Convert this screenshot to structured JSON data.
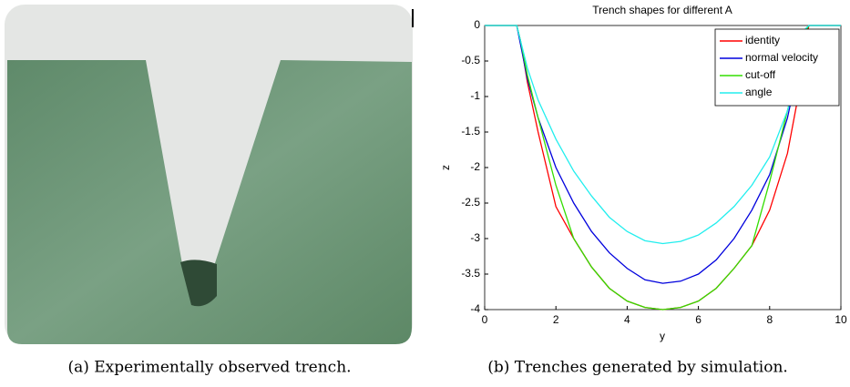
{
  "chart_data": {
    "type": "line",
    "title": "Trench shapes for different A",
    "x_label": "y",
    "y_label": "z",
    "x": [
      0,
      0.5,
      0.9,
      1.0,
      1.2,
      1.5,
      2,
      2.5,
      3,
      3.5,
      4,
      4.5,
      5,
      5.5,
      6,
      6.5,
      7,
      7.5,
      8,
      8.5,
      8.8,
      9,
      9.1,
      9.5,
      10
    ],
    "series": [
      {
        "name": "identity",
        "color": "#ff0000",
        "values": [
          0,
          0,
          0,
          -0.2,
          -0.8,
          -1.5,
          -2.55,
          -3.0,
          -3.4,
          -3.7,
          -3.88,
          -3.97,
          -4.0,
          -3.97,
          -3.88,
          -3.7,
          -3.42,
          -3.1,
          -2.6,
          -1.8,
          -1.0,
          -0.3,
          0,
          0,
          0
        ]
      },
      {
        "name": "normal velocity",
        "color": "#0000dd",
        "values": [
          0,
          0,
          0,
          -0.25,
          -0.75,
          -1.3,
          -2.0,
          -2.5,
          -2.9,
          -3.2,
          -3.42,
          -3.58,
          -3.63,
          -3.6,
          -3.5,
          -3.3,
          -3.0,
          -2.6,
          -2.1,
          -1.3,
          -0.6,
          -0.1,
          0,
          0,
          0
        ]
      },
      {
        "name": "cut-off",
        "color": "#33dd00",
        "values": [
          0,
          0,
          0,
          -0.2,
          -0.7,
          -1.3,
          -2.25,
          -3.0,
          -3.4,
          -3.7,
          -3.88,
          -3.97,
          -4.0,
          -3.97,
          -3.88,
          -3.7,
          -3.42,
          -3.1,
          -2.2,
          -1.2,
          -0.6,
          -0.1,
          0,
          0,
          0
        ]
      },
      {
        "name": "angle",
        "color": "#22eeee",
        "values": [
          0,
          0,
          0,
          -0.2,
          -0.6,
          -1.05,
          -1.6,
          -2.05,
          -2.4,
          -2.7,
          -2.9,
          -3.03,
          -3.07,
          -3.04,
          -2.95,
          -2.78,
          -2.55,
          -2.25,
          -1.85,
          -1.2,
          -0.6,
          -0.05,
          0,
          0,
          0
        ]
      }
    ],
    "xlim": [
      0,
      10
    ],
    "ylim": [
      -4,
      0
    ],
    "xticks": [
      0,
      2,
      4,
      6,
      8,
      10
    ],
    "yticks": [
      0,
      -0.5,
      -1,
      -1.5,
      -2,
      -2.5,
      -3,
      -3.5,
      -4
    ],
    "legend": "upper right"
  },
  "captions": [
    "(a) Experimentally observed trench.",
    "(b) Trenches generated by simulation."
  ]
}
